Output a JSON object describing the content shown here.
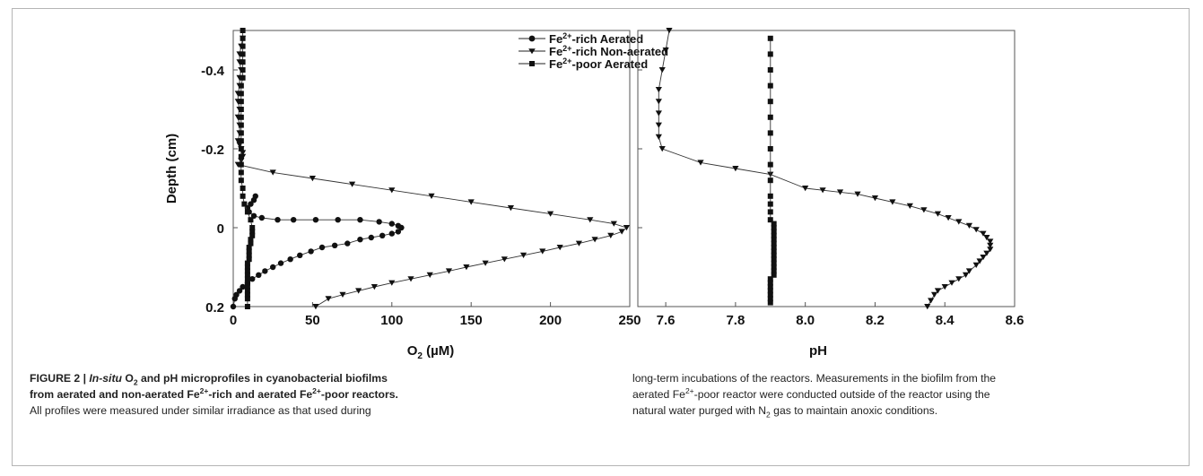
{
  "chart_data": [
    {
      "type": "scatter",
      "xlabel": "O",
      "xlabel_sub": "2",
      "xlabel_units": " (µM)",
      "ylabel": "Depth (cm)",
      "xlim": [
        0,
        250
      ],
      "ylim": [
        -0.5,
        0.2
      ],
      "y_inverted": true,
      "xticks": [
        "0",
        "50",
        "100",
        "150",
        "200",
        "250"
      ],
      "yticks": [
        "-0.4",
        "-0.2",
        "0",
        "0.2"
      ],
      "ytick_values": [
        -0.4,
        -0.2,
        0,
        0.2
      ],
      "grid": false,
      "legend_position": "top-right",
      "legend": [
        {
          "pre": "Fe",
          "sup": "2+",
          "post": "-rich Aerated",
          "marker": "circle"
        },
        {
          "pre": "Fe",
          "sup": "2+",
          "post": "-rich Non-aerated",
          "marker": "triangle-down"
        },
        {
          "pre": "Fe",
          "sup": "2+",
          "post": "-poor Aerated",
          "marker": "square"
        }
      ],
      "series": [
        {
          "marker": "circle",
          "x": [
            14,
            13,
            11,
            9,
            10,
            13,
            18,
            28,
            38,
            52,
            66,
            80,
            92,
            100,
            104,
            106,
            104,
            100,
            94,
            87,
            80,
            72,
            64,
            56,
            49,
            42,
            36,
            30,
            25,
            20,
            16,
            12,
            9,
            6,
            4,
            2,
            1,
            0
          ],
          "y": [
            -0.08,
            -0.07,
            -0.06,
            -0.05,
            -0.04,
            -0.03,
            -0.025,
            -0.02,
            -0.02,
            -0.02,
            -0.02,
            -0.02,
            -0.015,
            -0.01,
            -0.005,
            0.0,
            0.01,
            0.015,
            0.02,
            0.025,
            0.03,
            0.04,
            0.045,
            0.05,
            0.06,
            0.07,
            0.08,
            0.09,
            0.1,
            0.11,
            0.12,
            0.13,
            0.14,
            0.15,
            0.16,
            0.17,
            0.18,
            0.2
          ]
        },
        {
          "marker": "triangle-down",
          "x": [
            6,
            5,
            4,
            4,
            5,
            4,
            4,
            3,
            3,
            4,
            3,
            4,
            4,
            3,
            4,
            5,
            6,
            6,
            5,
            3,
            25,
            50,
            75,
            100,
            125,
            150,
            175,
            200,
            225,
            240,
            248,
            245,
            238,
            228,
            218,
            206,
            195,
            183,
            171,
            159,
            147,
            136,
            124,
            112,
            100,
            89,
            79,
            69,
            60,
            52
          ],
          "y": [
            -0.48,
            -0.46,
            -0.44,
            -0.42,
            -0.4,
            -0.38,
            -0.36,
            -0.34,
            -0.32,
            -0.3,
            -0.28,
            -0.26,
            -0.24,
            -0.22,
            -0.21,
            -0.2,
            -0.19,
            -0.18,
            -0.17,
            -0.16,
            -0.14,
            -0.125,
            -0.11,
            -0.095,
            -0.08,
            -0.065,
            -0.05,
            -0.035,
            -0.02,
            -0.01,
            0.0,
            0.01,
            0.02,
            0.03,
            0.04,
            0.05,
            0.06,
            0.07,
            0.08,
            0.09,
            0.1,
            0.11,
            0.12,
            0.13,
            0.14,
            0.15,
            0.16,
            0.17,
            0.18,
            0.2
          ]
        },
        {
          "marker": "square",
          "x": [
            6,
            6,
            6,
            6,
            6,
            6,
            6,
            5,
            5,
            5,
            5,
            5,
            5,
            5,
            5,
            5,
            5,
            5,
            5,
            5,
            6,
            6,
            7,
            9,
            11,
            12,
            12,
            12,
            11,
            11,
            10,
            10,
            10,
            10,
            9,
            9,
            9,
            9,
            9,
            9,
            9,
            9,
            9,
            9,
            9
          ],
          "y": [
            -0.5,
            -0.48,
            -0.46,
            -0.44,
            -0.42,
            -0.4,
            -0.38,
            -0.36,
            -0.34,
            -0.32,
            -0.3,
            -0.28,
            -0.26,
            -0.24,
            -0.22,
            -0.2,
            -0.18,
            -0.16,
            -0.14,
            -0.12,
            -0.1,
            -0.08,
            -0.06,
            -0.04,
            -0.02,
            0.0,
            0.01,
            0.02,
            0.03,
            0.04,
            0.05,
            0.06,
            0.07,
            0.08,
            0.09,
            0.1,
            0.11,
            0.12,
            0.13,
            0.14,
            0.15,
            0.16,
            0.17,
            0.18,
            0.2
          ]
        }
      ]
    },
    {
      "type": "scatter",
      "xlabel": "pH",
      "xlim": [
        7.52,
        8.6
      ],
      "ylim": [
        -0.5,
        0.2
      ],
      "y_inverted": true,
      "xticks": [
        "7.6",
        "7.8",
        "8.0",
        "8.2",
        "8.4",
        "8.6"
      ],
      "xtick_values": [
        7.6,
        7.8,
        8.0,
        8.2,
        8.4,
        8.6
      ],
      "ytick_values": [
        -0.4,
        -0.2,
        0,
        0.2
      ],
      "grid": false,
      "series": [
        {
          "marker": "triangle-down",
          "x": [
            7.61,
            7.6,
            7.59,
            7.58,
            7.58,
            7.58,
            7.58,
            7.58,
            7.59,
            7.7,
            7.8,
            7.9,
            8.0,
            8.05,
            8.1,
            8.15,
            8.2,
            8.25,
            8.3,
            8.34,
            8.38,
            8.41,
            8.44,
            8.47,
            8.49,
            8.51,
            8.52,
            8.53,
            8.53,
            8.53,
            8.52,
            8.51,
            8.5,
            8.49,
            8.47,
            8.46,
            8.44,
            8.42,
            8.4,
            8.38,
            8.37,
            8.36,
            8.35
          ],
          "y": [
            -0.5,
            -0.45,
            -0.4,
            -0.35,
            -0.32,
            -0.29,
            -0.26,
            -0.23,
            -0.2,
            -0.165,
            -0.15,
            -0.135,
            -0.1,
            -0.095,
            -0.09,
            -0.085,
            -0.075,
            -0.065,
            -0.055,
            -0.045,
            -0.035,
            -0.025,
            -0.015,
            -0.005,
            0.005,
            0.015,
            0.025,
            0.035,
            0.045,
            0.055,
            0.065,
            0.075,
            0.085,
            0.095,
            0.11,
            0.12,
            0.13,
            0.14,
            0.15,
            0.16,
            0.17,
            0.185,
            0.2
          ]
        },
        {
          "marker": "square",
          "x": [
            7.9,
            7.9,
            7.9,
            7.9,
            7.9,
            7.9,
            7.9,
            7.9,
            7.9,
            7.9,
            7.9,
            7.9,
            7.9,
            7.9,
            7.91,
            7.91,
            7.91,
            7.91,
            7.91,
            7.91,
            7.91,
            7.91,
            7.91,
            7.91,
            7.91,
            7.91,
            7.91,
            7.91,
            7.9,
            7.9,
            7.9,
            7.9,
            7.9,
            7.9,
            7.9
          ],
          "y": [
            -0.48,
            -0.44,
            -0.4,
            -0.36,
            -0.32,
            -0.28,
            -0.24,
            -0.2,
            -0.16,
            -0.12,
            -0.08,
            -0.06,
            -0.04,
            -0.02,
            -0.01,
            0.0,
            0.01,
            0.02,
            0.03,
            0.04,
            0.05,
            0.06,
            0.07,
            0.08,
            0.09,
            0.1,
            0.11,
            0.12,
            0.13,
            0.14,
            0.15,
            0.16,
            0.17,
            0.18,
            0.19
          ]
        }
      ]
    }
  ],
  "caption": {
    "bold_1": "FIGURE 2 | ",
    "bold_italic": "In-situ",
    "bold_2": " O",
    "bold_sub": "2",
    "bold_3": " and pH microprofiles in cyanobacterial biofilms",
    "bold_4": "from aerated and non-aerated Fe",
    "bold_sup_1": "2+",
    "bold_5": "-rich and aerated Fe",
    "bold_sup_2": "2+",
    "bold_6": "-poor reactors.",
    "text_1": "All profiles were measured under similar irradiance as that used during",
    "text_2": "long-term incubations of the reactors. Measurements in the biofilm from the",
    "text_3a": "aerated Fe",
    "text_3_sup": "2+",
    "text_3b": "-poor reactor were conducted outside of the reactor using the",
    "text_4a": "natural water purged with N",
    "text_4_sub": "2",
    "text_4b": " gas to maintain anoxic conditions."
  }
}
